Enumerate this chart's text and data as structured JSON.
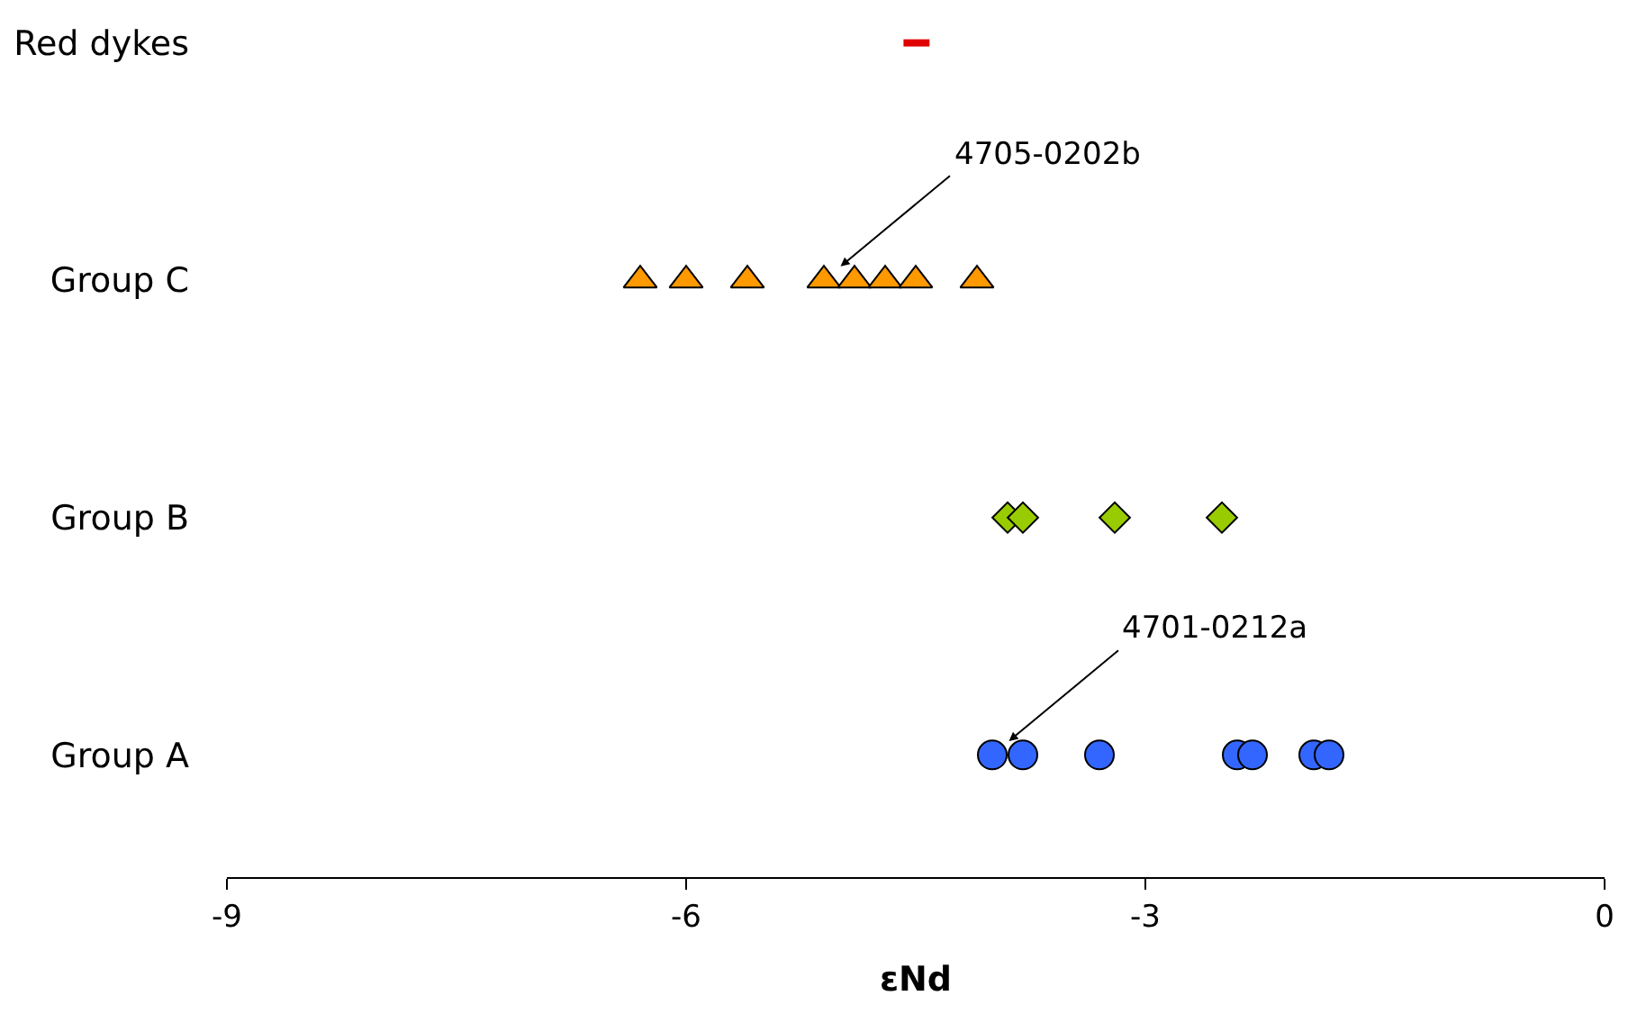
{
  "chart_data": {
    "type": "scatter",
    "orientation": "horizontal",
    "categories": [
      "Red dykes",
      "Group C",
      "Group B",
      "Group A"
    ],
    "xlabel": "εNd",
    "xlim": [
      -9,
      0
    ],
    "xticks": [
      -9,
      -6,
      -3,
      0
    ],
    "grid": false,
    "series": [
      {
        "type": "line",
        "marker": "none",
        "color": "#e00000",
        "x": [
          "Red dykes",
          "Red dykes"
        ],
        "values": [
          -4.58,
          -4.41
        ]
      },
      {
        "marker": "triangle",
        "color": "#ff9900",
        "x": [
          "Group C",
          "Group C",
          "Group C",
          "Group C",
          "Group C",
          "Group C",
          "Group C",
          "Group C"
        ],
        "values": [
          -6.3,
          -6.0,
          -5.6,
          -5.1,
          -4.9,
          -4.7,
          -4.5,
          -4.1
        ]
      },
      {
        "marker": "diamond",
        "color": "#99cc00",
        "x": [
          "Group B",
          "Group B",
          "Group B",
          "Group B"
        ],
        "values": [
          -3.9,
          -3.8,
          -3.2,
          -2.5
        ]
      },
      {
        "marker": "circle",
        "color": "#3366ff",
        "x": [
          "Group A",
          "Group A",
          "Group A",
          "Group A",
          "Group A",
          "Group A",
          "Group A"
        ],
        "values": [
          -4.0,
          -3.8,
          -3.3,
          -2.4,
          -2.3,
          -1.9,
          -1.8
        ]
      }
    ],
    "annotations": [
      {
        "text": "4705-0202b",
        "x": -5.1,
        "y": "Group C"
      },
      {
        "text": "4701-0212a",
        "x": -4.0,
        "y": "Group A"
      }
    ]
  }
}
